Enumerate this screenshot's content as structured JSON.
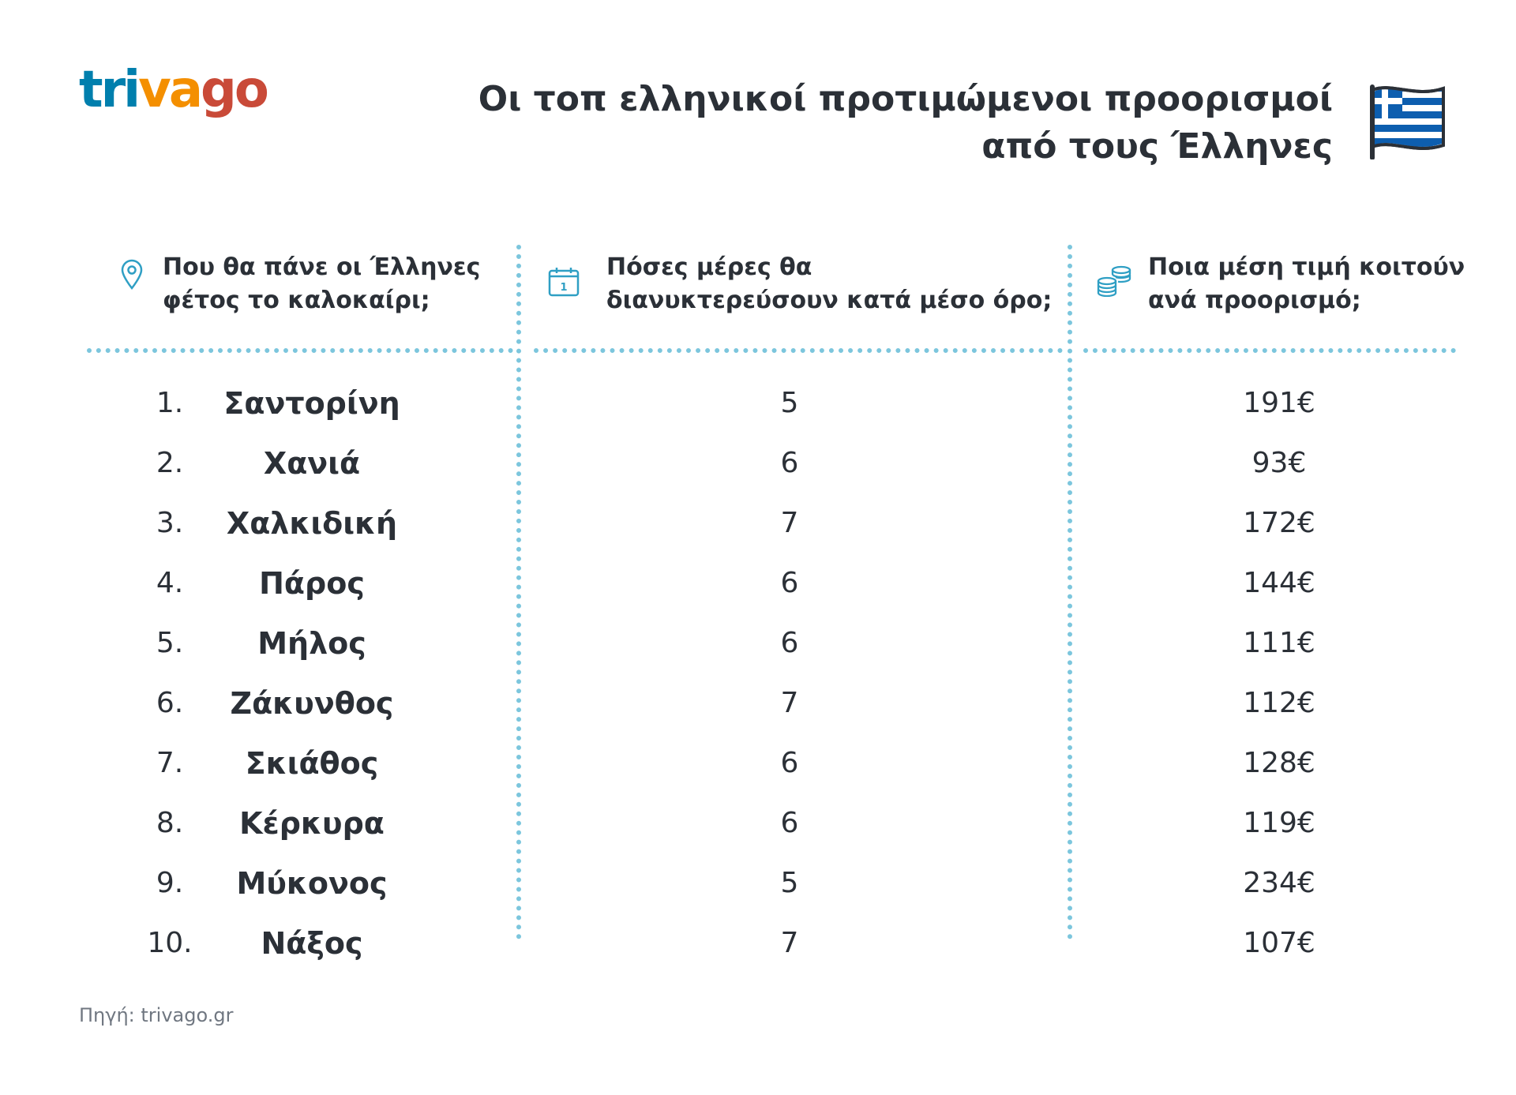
{
  "logo": {
    "part1": "tri",
    "part2": "va",
    "part3": "go"
  },
  "title": {
    "line1": "Οι τοπ ελληνικοί προτιμώμενοι προορισμοί",
    "line2": "από τους Έλληνες"
  },
  "columns": {
    "destination": {
      "line1": "Που θα πάνε οι Έλληνες",
      "line2": "φέτος το καλοκαίρι;",
      "icon": "location-pin-icon"
    },
    "nights": {
      "line1": "Πόσες μέρες θα",
      "line2": "διανυκτερεύσουν κατά μέσο όρο;",
      "icon": "calendar-icon",
      "icon_text": "1"
    },
    "price": {
      "line1": "Ποια μέση τιμή κοιτούν",
      "line2": "ανά προορισμό;",
      "icon": "coins-icon"
    }
  },
  "rows": [
    {
      "rank": "1.",
      "destination": "Σαντορίνη",
      "nights": "5",
      "price": "191€"
    },
    {
      "rank": "2.",
      "destination": "Χανιά",
      "nights": "6",
      "price": "93€"
    },
    {
      "rank": "3.",
      "destination": "Χαλκιδική",
      "nights": "7",
      "price": "172€"
    },
    {
      "rank": "4.",
      "destination": "Πάρος",
      "nights": "6",
      "price": "144€"
    },
    {
      "rank": "5.",
      "destination": "Μήλος",
      "nights": "6",
      "price": "111€"
    },
    {
      "rank": "6.",
      "destination": "Ζάκυνθος",
      "nights": "7",
      "price": "112€"
    },
    {
      "rank": "7.",
      "destination": "Σκιάθος",
      "nights": "6",
      "price": "128€"
    },
    {
      "rank": "8.",
      "destination": "Κέρκυρα",
      "nights": "6",
      "price": "119€"
    },
    {
      "rank": "9.",
      "destination": "Μύκονος",
      "nights": "5",
      "price": "234€"
    },
    {
      "rank": "10.",
      "destination": "Νάξος",
      "nights": "7",
      "price": "107€"
    }
  ],
  "source": "Πηγή: trivago.gr",
  "colors": {
    "accent": "#7cc6dd",
    "text": "#2b3037",
    "logo_blue": "#007fad",
    "logo_orange": "#f48f00",
    "logo_red": "#c94a38",
    "flag_blue": "#0d5eaf"
  }
}
